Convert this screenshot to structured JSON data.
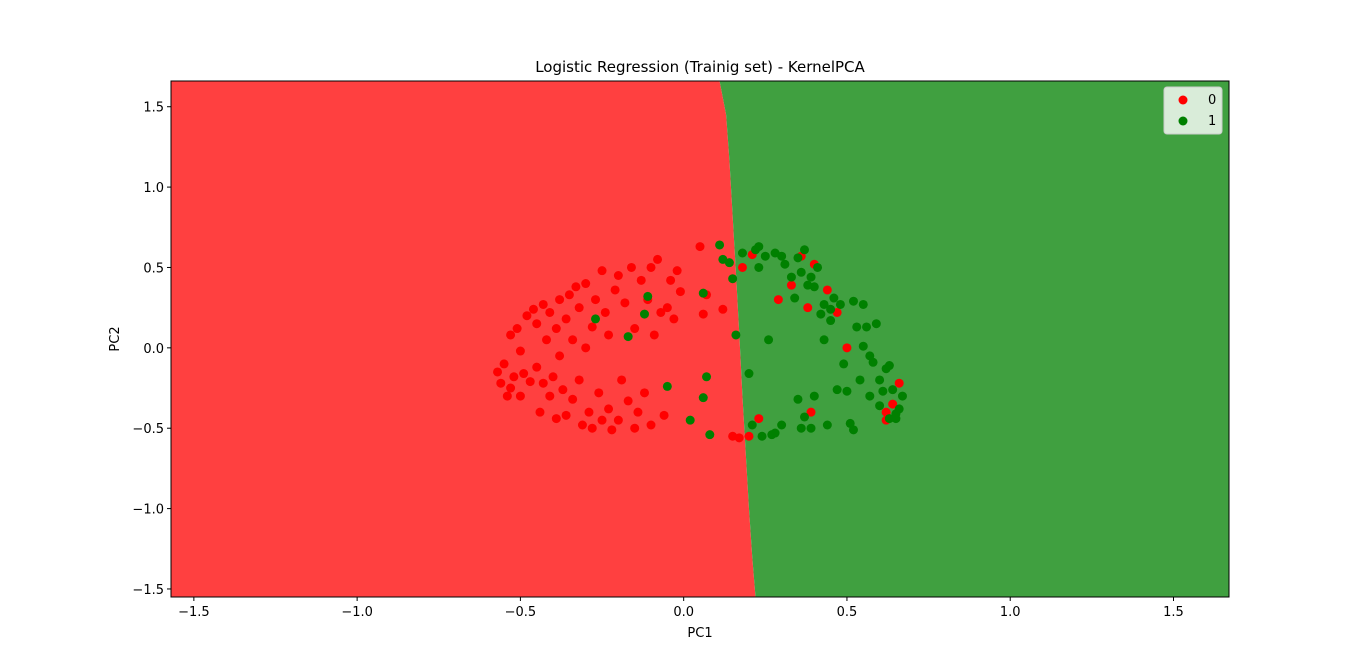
{
  "chart_data": {
    "type": "scatter",
    "title": "Logistic Regression (Trainig set) - KernelPCA",
    "xlabel": "PC1",
    "ylabel": "PC2",
    "xlim": [
      -1.57,
      1.67
    ],
    "ylim": [
      -1.55,
      1.66
    ],
    "x_ticks": [
      -1.5,
      -1.0,
      -0.5,
      0.0,
      0.5,
      1.0,
      1.5
    ],
    "x_tick_labels": [
      "−1.5",
      "−1.0",
      "−0.5",
      "0.0",
      "0.5",
      "1.0",
      "1.5"
    ],
    "y_ticks": [
      -1.5,
      -1.0,
      -0.5,
      0.0,
      0.5,
      1.0,
      1.5
    ],
    "y_tick_labels": [
      "−1.5",
      "−1.0",
      "−0.5",
      "0.0",
      "0.5",
      "1.0",
      "1.5"
    ],
    "grid": false,
    "legend_placement": "top-right",
    "colors": {
      "region_0": "#ff4040",
      "region_1": "#40a040",
      "point_0": "#ff0000",
      "point_1": "#008000",
      "frame": "#000000",
      "legend_bg": "#ffffff"
    },
    "decision_boundary": {
      "description_free": true,
      "points": [
        [
          0.11,
          1.66
        ],
        [
          0.13,
          1.45
        ],
        [
          0.14,
          1.17
        ],
        [
          0.15,
          0.82
        ],
        [
          0.16,
          0.47
        ],
        [
          0.17,
          0.1
        ],
        [
          0.18,
          -0.3
        ],
        [
          0.19,
          -0.65
        ],
        [
          0.2,
          -1.0
        ],
        [
          0.21,
          -1.3
        ],
        [
          0.22,
          -1.55
        ]
      ]
    },
    "series": [
      {
        "name": "0",
        "color": "#ff0000",
        "points": [
          [
            -0.57,
            -0.15
          ],
          [
            -0.56,
            -0.22
          ],
          [
            -0.55,
            -0.1
          ],
          [
            -0.54,
            -0.3
          ],
          [
            -0.53,
            -0.25
          ],
          [
            -0.53,
            0.08
          ],
          [
            -0.52,
            -0.18
          ],
          [
            -0.51,
            0.12
          ],
          [
            -0.5,
            -0.02
          ],
          [
            -0.5,
            -0.3
          ],
          [
            -0.49,
            -0.16
          ],
          [
            -0.48,
            0.2
          ],
          [
            -0.47,
            -0.21
          ],
          [
            -0.46,
            0.24
          ],
          [
            -0.45,
            -0.12
          ],
          [
            -0.45,
            0.15
          ],
          [
            -0.44,
            -0.4
          ],
          [
            -0.43,
            0.27
          ],
          [
            -0.43,
            -0.22
          ],
          [
            -0.42,
            0.05
          ],
          [
            -0.41,
            -0.3
          ],
          [
            -0.41,
            0.22
          ],
          [
            -0.4,
            -0.18
          ],
          [
            -0.39,
            -0.44
          ],
          [
            -0.39,
            0.12
          ],
          [
            -0.38,
            0.3
          ],
          [
            -0.38,
            -0.05
          ],
          [
            -0.37,
            -0.26
          ],
          [
            -0.36,
            -0.42
          ],
          [
            -0.36,
            0.18
          ],
          [
            -0.35,
            0.33
          ],
          [
            -0.34,
            -0.32
          ],
          [
            -0.34,
            0.05
          ],
          [
            -0.33,
            0.38
          ],
          [
            -0.32,
            -0.2
          ],
          [
            -0.32,
            0.25
          ],
          [
            -0.31,
            -0.48
          ],
          [
            -0.3,
            0.4
          ],
          [
            -0.3,
            0.0
          ],
          [
            -0.29,
            -0.4
          ],
          [
            -0.28,
            0.13
          ],
          [
            -0.28,
            -0.5
          ],
          [
            -0.27,
            0.3
          ],
          [
            -0.26,
            -0.28
          ],
          [
            -0.25,
            0.48
          ],
          [
            -0.25,
            -0.45
          ],
          [
            -0.24,
            0.22
          ],
          [
            -0.23,
            -0.38
          ],
          [
            -0.23,
            0.08
          ],
          [
            -0.22,
            -0.51
          ],
          [
            -0.21,
            0.36
          ],
          [
            -0.2,
            -0.45
          ],
          [
            -0.2,
            0.45
          ],
          [
            -0.19,
            -0.2
          ],
          [
            -0.18,
            0.28
          ],
          [
            -0.17,
            -0.33
          ],
          [
            -0.16,
            0.5
          ],
          [
            -0.15,
            -0.5
          ],
          [
            -0.15,
            0.12
          ],
          [
            -0.14,
            -0.4
          ],
          [
            -0.13,
            0.42
          ],
          [
            -0.12,
            -0.28
          ],
          [
            -0.11,
            0.3
          ],
          [
            -0.1,
            0.5
          ],
          [
            -0.1,
            -0.48
          ],
          [
            -0.09,
            0.08
          ],
          [
            -0.08,
            0.55
          ],
          [
            -0.07,
            0.22
          ],
          [
            -0.06,
            -0.42
          ],
          [
            -0.05,
            0.25
          ],
          [
            -0.04,
            0.42
          ],
          [
            -0.03,
            0.18
          ],
          [
            -0.02,
            0.48
          ],
          [
            -0.01,
            0.35
          ],
          [
            0.05,
            0.63
          ],
          [
            0.06,
            0.21
          ],
          [
            0.07,
            0.33
          ],
          [
            0.12,
            0.24
          ],
          [
            0.17,
            -0.56
          ],
          [
            0.2,
            -0.55
          ],
          [
            0.21,
            0.58
          ],
          [
            0.23,
            -0.44
          ],
          [
            0.29,
            0.3
          ],
          [
            0.33,
            0.39
          ],
          [
            0.36,
            0.57
          ],
          [
            0.38,
            0.25
          ],
          [
            0.4,
            0.52
          ],
          [
            0.44,
            0.36
          ],
          [
            0.47,
            0.22
          ],
          [
            0.5,
            0.0
          ],
          [
            0.39,
            -0.4
          ],
          [
            0.62,
            -0.45
          ],
          [
            0.62,
            -0.4
          ],
          [
            0.64,
            -0.35
          ],
          [
            0.66,
            -0.22
          ],
          [
            0.15,
            -0.55
          ],
          [
            0.18,
            0.5
          ]
        ]
      },
      {
        "name": "1",
        "color": "#008000",
        "points": [
          [
            -0.27,
            0.18
          ],
          [
            -0.12,
            0.21
          ],
          [
            -0.11,
            0.32
          ],
          [
            -0.17,
            0.07
          ],
          [
            -0.05,
            -0.24
          ],
          [
            0.02,
            -0.45
          ],
          [
            0.06,
            -0.31
          ],
          [
            0.07,
            -0.18
          ],
          [
            0.08,
            -0.54
          ],
          [
            0.06,
            0.34
          ],
          [
            0.11,
            0.64
          ],
          [
            0.14,
            0.53
          ],
          [
            0.16,
            0.08
          ],
          [
            0.18,
            0.59
          ],
          [
            0.2,
            -0.16
          ],
          [
            0.22,
            0.61
          ],
          [
            0.23,
            0.63
          ],
          [
            0.24,
            -0.55
          ],
          [
            0.25,
            0.57
          ],
          [
            0.26,
            0.05
          ],
          [
            0.27,
            -0.54
          ],
          [
            0.28,
            0.59
          ],
          [
            0.3,
            -0.48
          ],
          [
            0.31,
            0.52
          ],
          [
            0.33,
            0.44
          ],
          [
            0.34,
            0.31
          ],
          [
            0.35,
            -0.32
          ],
          [
            0.36,
            0.47
          ],
          [
            0.36,
            -0.5
          ],
          [
            0.37,
            -0.43
          ],
          [
            0.38,
            0.39
          ],
          [
            0.39,
            0.44
          ],
          [
            0.39,
            -0.5
          ],
          [
            0.4,
            0.38
          ],
          [
            0.4,
            -0.3
          ],
          [
            0.41,
            0.5
          ],
          [
            0.42,
            0.21
          ],
          [
            0.43,
            0.27
          ],
          [
            0.44,
            -0.48
          ],
          [
            0.45,
            0.17
          ],
          [
            0.46,
            0.31
          ],
          [
            0.47,
            -0.26
          ],
          [
            0.48,
            0.27
          ],
          [
            0.5,
            -0.27
          ],
          [
            0.51,
            -0.47
          ],
          [
            0.52,
            0.29
          ],
          [
            0.53,
            0.13
          ],
          [
            0.54,
            -0.2
          ],
          [
            0.55,
            0.01
          ],
          [
            0.56,
            0.13
          ],
          [
            0.57,
            -0.3
          ],
          [
            0.58,
            -0.09
          ],
          [
            0.59,
            0.15
          ],
          [
            0.6,
            -0.36
          ],
          [
            0.61,
            -0.27
          ],
          [
            0.62,
            -0.13
          ],
          [
            0.63,
            -0.44
          ],
          [
            0.64,
            -0.26
          ],
          [
            0.65,
            -0.41
          ],
          [
            0.66,
            -0.38
          ],
          [
            0.67,
            -0.3
          ],
          [
            0.12,
            0.55
          ],
          [
            0.21,
            -0.48
          ],
          [
            0.28,
            -0.53
          ],
          [
            0.35,
            0.56
          ],
          [
            0.43,
            0.05
          ],
          [
            0.52,
            -0.51
          ],
          [
            0.55,
            0.27
          ],
          [
            0.57,
            -0.05
          ],
          [
            0.6,
            -0.2
          ],
          [
            0.63,
            -0.11
          ],
          [
            0.65,
            -0.44
          ],
          [
            0.23,
            0.5
          ],
          [
            0.3,
            0.57
          ],
          [
            0.37,
            0.61
          ],
          [
            0.45,
            0.24
          ],
          [
            0.15,
            0.43
          ],
          [
            0.49,
            -0.1
          ]
        ]
      }
    ]
  }
}
